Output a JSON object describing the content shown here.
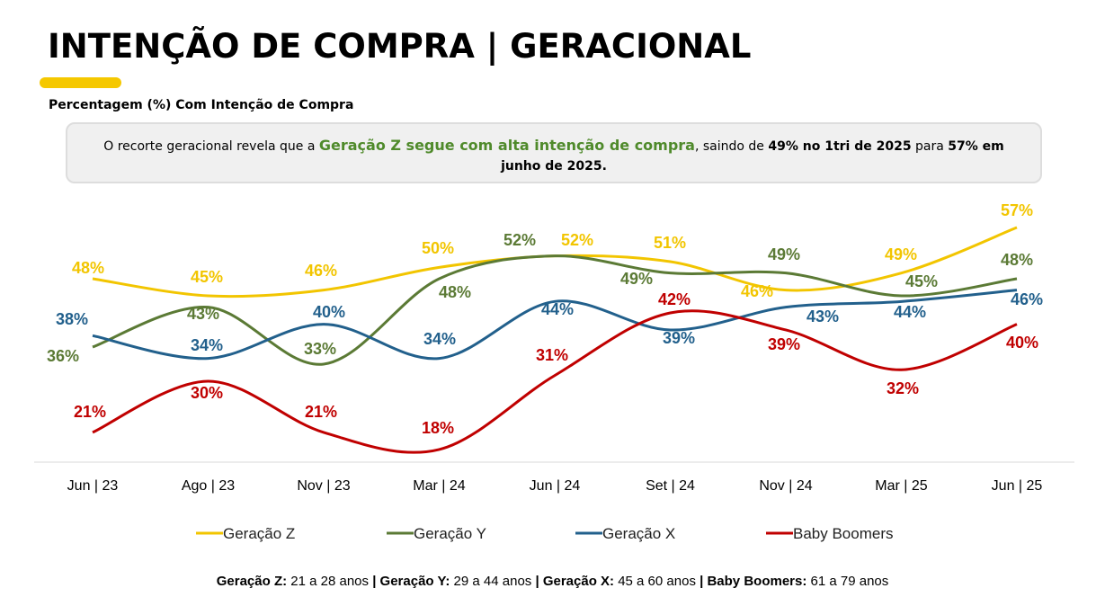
{
  "title": "INTENÇÃO DE COMPRA | GERACIONAL",
  "subtitle": "Percentagem (%) Com Intenção de Compra",
  "insight": {
    "pre": "O recorte geracional revela que a ",
    "highlight": "Geração Z segue com alta intenção de compra",
    "mid": ", saindo de ",
    "b1": "49% no 1tri de 2025",
    "mid2": " para ",
    "b2": "57% em junho de 2025."
  },
  "footer": [
    {
      "k": "Geração Z:",
      "v": " 21 a 28 anos "
    },
    {
      "k": "| Geração Y:",
      "v": " 29 a 44 anos "
    },
    {
      "k": "| Geração X:",
      "v": " 45 a 60 anos "
    },
    {
      "k": "| Baby Boomers:",
      "v": " 61 a 79 anos"
    }
  ],
  "chart_data": {
    "type": "line",
    "title": "Percentagem (%) Com Intenção de Compra",
    "categories": [
      "Jun | 23",
      "Ago | 23",
      "Nov | 23",
      "Mar | 24",
      "Jun | 24",
      "Set | 24",
      "Nov | 24",
      "Mar | 25",
      "Jun | 25"
    ],
    "series": [
      {
        "name": "Geração Z",
        "color": "#f2c500",
        "values": [
          48,
          45,
          46,
          50,
          52,
          51,
          46,
          49,
          57
        ]
      },
      {
        "name": "Geração Y",
        "color": "#5b7a35",
        "values": [
          36,
          43,
          33,
          48,
          52,
          49,
          49,
          45,
          48
        ]
      },
      {
        "name": "Geração X",
        "color": "#22608c",
        "values": [
          38,
          34,
          40,
          34,
          44,
          39,
          43,
          44,
          46
        ]
      },
      {
        "name": "Baby Boomers",
        "color": "#c00000",
        "values": [
          21,
          30,
          21,
          18,
          31,
          42,
          39,
          32,
          40
        ]
      }
    ],
    "value_suffix": "%",
    "legend": "bottom",
    "grid": false
  }
}
